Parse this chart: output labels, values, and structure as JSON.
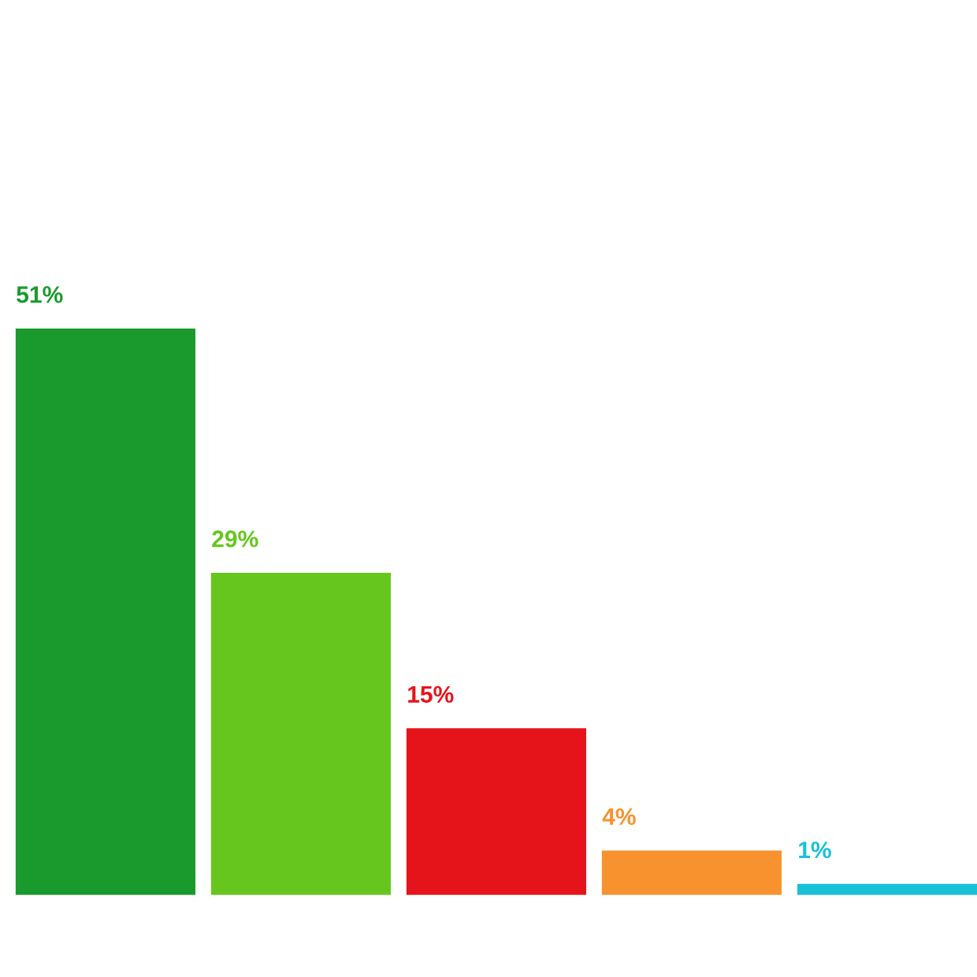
{
  "chart_data": {
    "type": "bar",
    "categories": [
      null,
      null,
      null,
      null,
      null
    ],
    "values": [
      51,
      29,
      15,
      4,
      1
    ],
    "colors": [
      "#1a9a2c",
      "#66c61e",
      "#e5141b",
      "#f7922f",
      "#18c1d6"
    ],
    "value_labels": [
      "51%",
      "29%",
      "15%",
      "4%",
      "1%"
    ]
  }
}
